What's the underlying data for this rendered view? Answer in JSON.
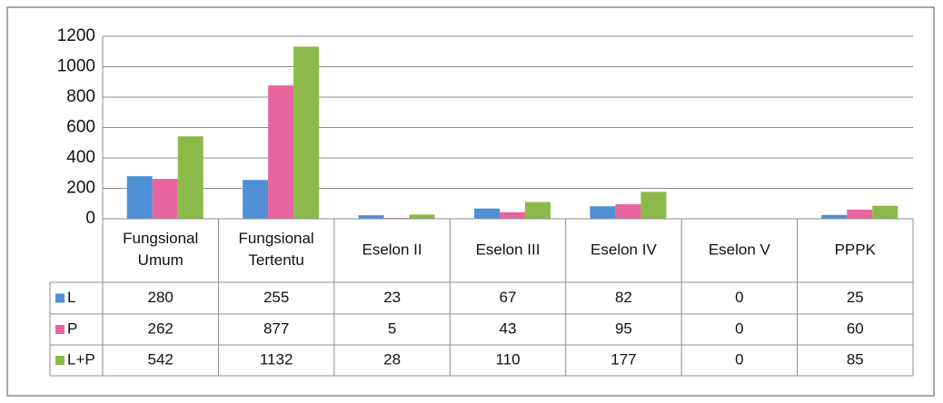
{
  "chart_data": {
    "type": "bar",
    "categories": [
      "Fungsional Umum",
      "Fungsional Tertentu",
      "Eselon II",
      "Eselon III",
      "Eselon IV",
      "Eselon V",
      "PPPK"
    ],
    "series": [
      {
        "name": "L",
        "color": "#4f8fd6",
        "values": [
          280,
          255,
          23,
          67,
          82,
          0,
          25
        ]
      },
      {
        "name": "P",
        "color": "#e8649f",
        "values": [
          262,
          877,
          5,
          43,
          95,
          0,
          60
        ]
      },
      {
        "name": "L+P",
        "color": "#8cba4a",
        "values": [
          542,
          1132,
          28,
          110,
          177,
          0,
          85
        ]
      }
    ],
    "ylim": [
      0,
      1200
    ],
    "yticks": [
      0,
      200,
      400,
      600,
      800,
      1000,
      1200
    ],
    "grid": true
  }
}
